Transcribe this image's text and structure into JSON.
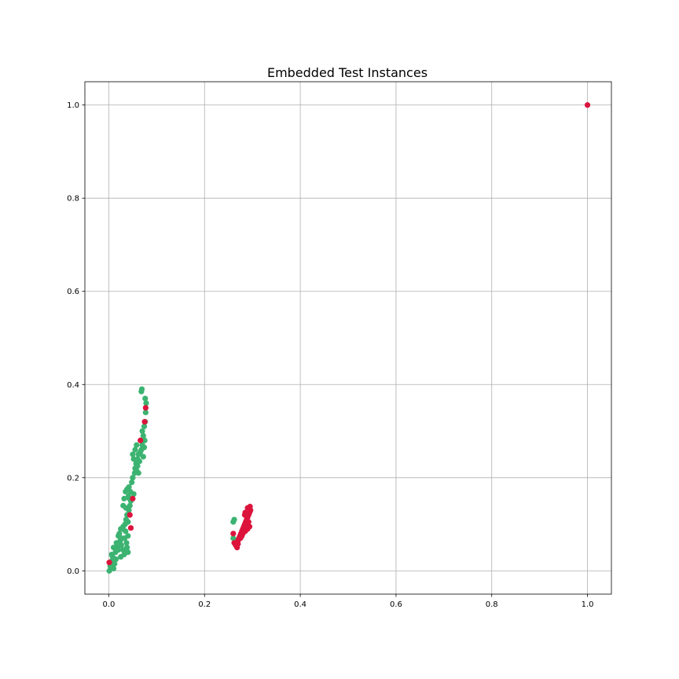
{
  "chart_data": {
    "type": "scatter",
    "title": "Embedded Test Instances",
    "xlabel": "",
    "ylabel": "",
    "xlim": [
      -0.05,
      1.05
    ],
    "ylim": [
      -0.05,
      1.05
    ],
    "grid": true,
    "x_ticks": [
      0.0,
      0.2,
      0.4,
      0.6,
      0.8,
      1.0
    ],
    "y_ticks": [
      0.0,
      0.2,
      0.4,
      0.6,
      0.8,
      1.0
    ],
    "x_tick_labels": [
      "0.0",
      "0.2",
      "0.4",
      "0.6",
      "0.8",
      "1.0"
    ],
    "y_tick_labels": [
      "0.0",
      "0.2",
      "0.4",
      "0.6",
      "0.8",
      "1.0"
    ],
    "colors": {
      "green": "#3cb371",
      "red": "#dc143c",
      "grid": "#b0b0b0"
    },
    "series": [
      {
        "name": "green",
        "color": "#3cb371",
        "points": [
          [
            0.001,
            0.0
          ],
          [
            0.003,
            0.01
          ],
          [
            0.005,
            0.02
          ],
          [
            0.008,
            0.03
          ],
          [
            0.01,
            0.005
          ],
          [
            0.012,
            0.015
          ],
          [
            0.006,
            0.035
          ],
          [
            0.014,
            0.04
          ],
          [
            0.016,
            0.06
          ],
          [
            0.018,
            0.05
          ],
          [
            0.02,
            0.075
          ],
          [
            0.022,
            0.08
          ],
          [
            0.024,
            0.065
          ],
          [
            0.026,
            0.055
          ],
          [
            0.028,
            0.09
          ],
          [
            0.03,
            0.095
          ],
          [
            0.025,
            0.03
          ],
          [
            0.03,
            0.045
          ],
          [
            0.033,
            0.07
          ],
          [
            0.035,
            0.085
          ],
          [
            0.037,
            0.06
          ],
          [
            0.038,
            0.05
          ],
          [
            0.04,
            0.04
          ],
          [
            0.032,
            0.035
          ],
          [
            0.034,
            0.1
          ],
          [
            0.036,
            0.11
          ],
          [
            0.038,
            0.12
          ],
          [
            0.04,
            0.105
          ],
          [
            0.042,
            0.13
          ],
          [
            0.044,
            0.14
          ],
          [
            0.046,
            0.15
          ],
          [
            0.03,
            0.14
          ],
          [
            0.032,
            0.155
          ],
          [
            0.035,
            0.17
          ],
          [
            0.038,
            0.175
          ],
          [
            0.042,
            0.18
          ],
          [
            0.045,
            0.17
          ],
          [
            0.048,
            0.19
          ],
          [
            0.05,
            0.2
          ],
          [
            0.052,
            0.165
          ],
          [
            0.054,
            0.21
          ],
          [
            0.055,
            0.22
          ],
          [
            0.057,
            0.23
          ],
          [
            0.058,
            0.215
          ],
          [
            0.06,
            0.24
          ],
          [
            0.062,
            0.25
          ],
          [
            0.064,
            0.235
          ],
          [
            0.066,
            0.255
          ],
          [
            0.068,
            0.26
          ],
          [
            0.07,
            0.27
          ],
          [
            0.072,
            0.245
          ],
          [
            0.074,
            0.265
          ],
          [
            0.075,
            0.28
          ],
          [
            0.072,
            0.29
          ],
          [
            0.07,
            0.3
          ],
          [
            0.074,
            0.31
          ],
          [
            0.076,
            0.32
          ],
          [
            0.077,
            0.34
          ],
          [
            0.078,
            0.36
          ],
          [
            0.076,
            0.37
          ],
          [
            0.068,
            0.385
          ],
          [
            0.069,
            0.39
          ],
          [
            0.05,
            0.25
          ],
          [
            0.052,
            0.24
          ],
          [
            0.055,
            0.26
          ],
          [
            0.058,
            0.27
          ],
          [
            0.06,
            0.225
          ],
          [
            0.062,
            0.21
          ],
          [
            0.015,
            0.025
          ],
          [
            0.02,
            0.045
          ],
          [
            0.01,
            0.05
          ],
          [
            0.008,
            0.015
          ],
          [
            0.025,
            0.09
          ],
          [
            0.027,
            0.07
          ],
          [
            0.04,
            0.075
          ],
          [
            0.043,
            0.155
          ],
          [
            0.036,
            0.135
          ],
          [
            0.041,
            0.16
          ],
          [
            0.26,
            0.105
          ],
          [
            0.262,
            0.11
          ],
          [
            0.26,
            0.07
          ],
          [
            0.265,
            0.065
          ]
        ]
      },
      {
        "name": "red",
        "color": "#dc143c",
        "points": [
          [
            1.0,
            1.0
          ],
          [
            0.001,
            0.018
          ],
          [
            0.077,
            0.35
          ],
          [
            0.075,
            0.32
          ],
          [
            0.066,
            0.28
          ],
          [
            0.05,
            0.155
          ],
          [
            0.044,
            0.12
          ],
          [
            0.046,
            0.092
          ],
          [
            0.262,
            0.06
          ],
          [
            0.265,
            0.055
          ],
          [
            0.268,
            0.05
          ],
          [
            0.27,
            0.065
          ],
          [
            0.272,
            0.07
          ],
          [
            0.274,
            0.075
          ],
          [
            0.276,
            0.08
          ],
          [
            0.278,
            0.085
          ],
          [
            0.28,
            0.09
          ],
          [
            0.282,
            0.095
          ],
          [
            0.284,
            0.1
          ],
          [
            0.286,
            0.105
          ],
          [
            0.288,
            0.11
          ],
          [
            0.29,
            0.115
          ],
          [
            0.292,
            0.12
          ],
          [
            0.294,
            0.125
          ],
          [
            0.296,
            0.13
          ],
          [
            0.295,
            0.138
          ],
          [
            0.29,
            0.135
          ],
          [
            0.285,
            0.125
          ],
          [
            0.284,
            0.12
          ],
          [
            0.28,
            0.08
          ],
          [
            0.285,
            0.085
          ],
          [
            0.29,
            0.09
          ],
          [
            0.275,
            0.07
          ],
          [
            0.278,
            0.075
          ],
          [
            0.26,
            0.08
          ],
          [
            0.27,
            0.058
          ],
          [
            0.292,
            0.105
          ],
          [
            0.288,
            0.1
          ],
          [
            0.294,
            0.095
          ],
          [
            0.286,
            0.09
          ]
        ]
      }
    ]
  }
}
